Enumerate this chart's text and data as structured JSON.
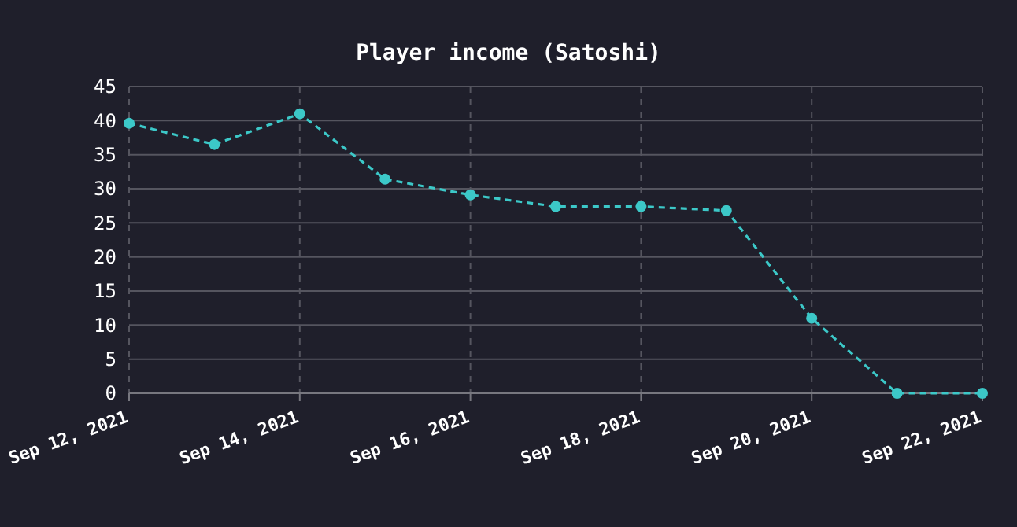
{
  "chart_data": {
    "type": "line",
    "title": "Player income (Satoshi)",
    "x": [
      "2021-09-12",
      "2021-09-13",
      "2021-09-14",
      "2021-09-15",
      "2021-09-16",
      "2021-09-17",
      "2021-09-18",
      "2021-09-19",
      "2021-09-20",
      "2021-09-21",
      "2021-09-22"
    ],
    "series": [
      {
        "color": "#3cc8c8",
        "values": [
          39.6,
          36.5,
          41,
          31.4,
          29.1,
          27.4,
          27.4,
          26.8,
          11,
          0,
          0
        ]
      }
    ],
    "xlim": [
      "2021-09-12",
      "2021-09-22"
    ],
    "xticks": [
      {
        "value": "2021-09-12",
        "label": "Sep 12, 2021"
      },
      {
        "value": "2021-09-14",
        "label": "Sep 14, 2021"
      },
      {
        "value": "2021-09-16",
        "label": "Sep 16, 2021"
      },
      {
        "value": "2021-09-18",
        "label": "Sep 18, 2021"
      },
      {
        "value": "2021-09-20",
        "label": "Sep 20, 2021"
      },
      {
        "value": "2021-09-22",
        "label": "Sep 22, 2021"
      }
    ],
    "ylim": [
      0,
      45
    ],
    "yticks": [
      0,
      5,
      10,
      15,
      20,
      25,
      30,
      35,
      40,
      45
    ],
    "grid": true,
    "marker": "circle",
    "line_style": "dashed"
  }
}
